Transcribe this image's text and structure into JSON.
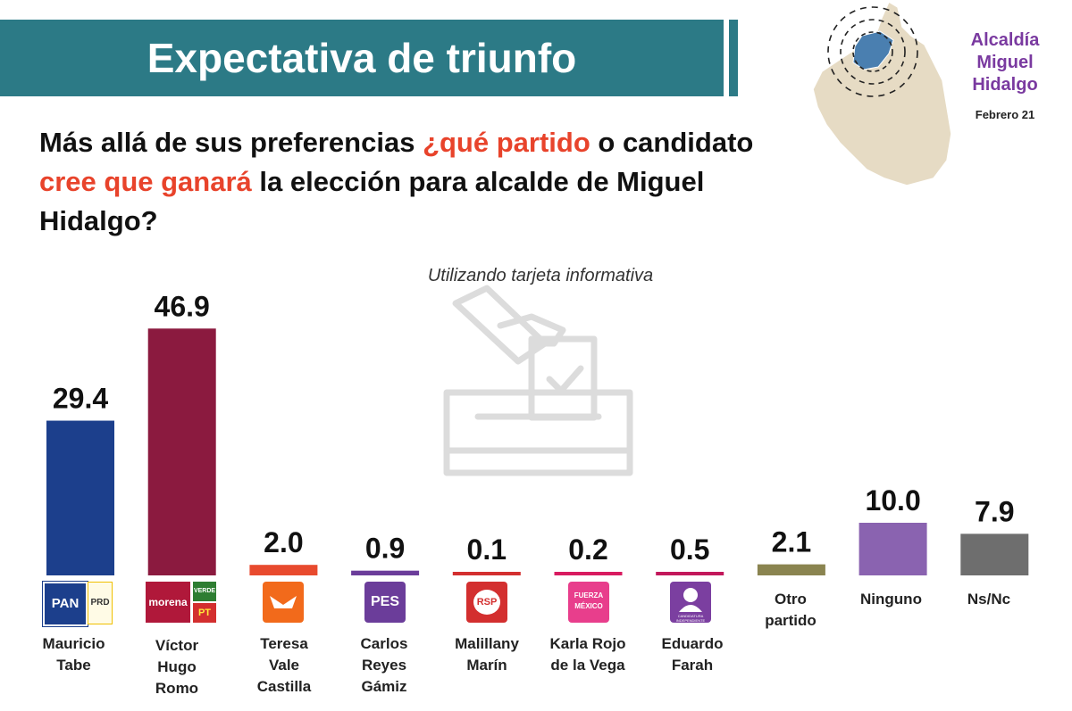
{
  "header": {
    "title": "Expectativa de triunfo",
    "place": "Alcaldía Miguel Hidalgo",
    "date": "Febrero 21"
  },
  "question": {
    "part1": "Más allá de sus preferencias ",
    "highlight1": "¿qué partido",
    "part2": " o candidato ",
    "highlight2": "cree que ganará",
    "part3": " la elección para alcalde de Miguel Hidalgo?"
  },
  "note": "Utilizando tarjeta informativa",
  "logos": {
    "pan": "PAN",
    "prd": "PRD",
    "morena": "morena",
    "verde": "VERDE",
    "pt": "PT",
    "pes": "PES",
    "rsp": "RSP",
    "fuerza": "FUERZA MÉXICO",
    "indep": "CANDIDATURA INDEPENDIENTE"
  },
  "colors": {
    "banner": "#2c7a86",
    "highlight": "#e8432b",
    "place": "#7a3aa0"
  },
  "chart_data": {
    "type": "bar",
    "categories": [
      "Mauricio Tabe",
      "Víctor Hugo Romo",
      "Teresa Vale Castilla",
      "Carlos Reyes Gámiz",
      "Malillany Marín",
      "Karla Rojo de la Vega",
      "Eduardo Farah",
      "Otro partido",
      "Ninguno",
      "Ns/Nc"
    ],
    "values": [
      29.4,
      46.9,
      2.0,
      0.9,
      0.1,
      0.2,
      0.5,
      2.1,
      10.0,
      7.9
    ],
    "value_labels": [
      "29.4",
      "46.9",
      "2.0",
      "0.9",
      "0.1",
      "0.2",
      "0.5",
      "2.1",
      "10.0",
      "7.9"
    ],
    "colors": [
      "#1c3f8c",
      "#8b1a3f",
      "#e84a2e",
      "#6b3d9a",
      "#d32f2f",
      "#d81b60",
      "#c2185b",
      "#8a8450",
      "#8a63b0",
      "#6e6e6e"
    ],
    "ylim": [
      0,
      50
    ],
    "grid": false,
    "legend": "none"
  }
}
